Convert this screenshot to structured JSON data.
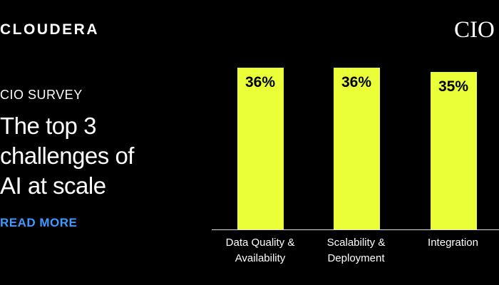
{
  "brand": "CLOUDERA",
  "publisher": "CIO",
  "eyebrow": "CIO SURVEY",
  "headline": "The top 3 challenges of AI at scale",
  "cta": "READ MORE",
  "chart_data": {
    "type": "bar",
    "categories": [
      "Data Quality & Availability",
      "Scalability & Deployment",
      "Integration"
    ],
    "values": [
      36,
      36,
      35
    ],
    "value_labels": [
      "36%",
      "36%",
      "35%"
    ],
    "color": "#eaff38",
    "ylim": [
      0,
      36
    ]
  }
}
